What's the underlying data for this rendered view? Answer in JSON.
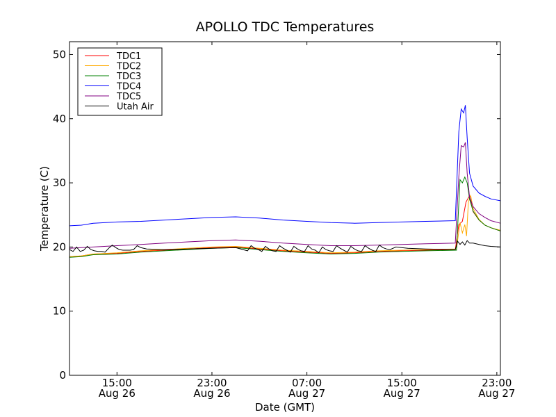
{
  "chart_data": {
    "type": "line",
    "title": "APOLLO TDC Temperatures",
    "xlabel": "Date (GMT)",
    "ylabel": "Temperature (C)",
    "xlim": [
      11.0,
      47.3
    ],
    "ylim": [
      0,
      52
    ],
    "x_unit": "hours since Aug 26 00:00 GMT",
    "grid": false,
    "legend_position": "top-left",
    "y_ticks": [
      {
        "value": 0,
        "label": "0"
      },
      {
        "value": 10,
        "label": "10"
      },
      {
        "value": 20,
        "label": "20"
      },
      {
        "value": 30,
        "label": "30"
      },
      {
        "value": 40,
        "label": "40"
      },
      {
        "value": 50,
        "label": "50"
      }
    ],
    "x_ticks": [
      {
        "value": 15,
        "time": "15:00",
        "date": "Aug 26"
      },
      {
        "value": 23,
        "time": "23:00",
        "date": "Aug 26"
      },
      {
        "value": 31,
        "time": "07:00",
        "date": "Aug 27"
      },
      {
        "value": 39,
        "time": "15:00",
        "date": "Aug 27"
      },
      {
        "value": 47,
        "time": "23:00",
        "date": "Aug 27"
      }
    ],
    "series": [
      {
        "name": "TDC1",
        "color": "#ff0000",
        "x": [
          11.0,
          12.0,
          13.0,
          15.0,
          17.0,
          19.0,
          21.0,
          23.0,
          25.0,
          27.0,
          29.0,
          31.0,
          33.0,
          35.0,
          37.0,
          39.0,
          41.0,
          43.5,
          43.8,
          44.1,
          44.4,
          44.7,
          45.0,
          45.5,
          46.0,
          46.5,
          47.3
        ],
        "y": [
          18.5,
          18.6,
          18.9,
          19.0,
          19.3,
          19.5,
          19.7,
          19.9,
          20.0,
          19.7,
          19.4,
          19.2,
          19.0,
          19.1,
          19.3,
          19.4,
          19.5,
          19.6,
          23.5,
          24.0,
          27.0,
          28.0,
          25.5,
          24.2,
          23.4,
          23.0,
          22.5
        ]
      },
      {
        "name": "TDC2",
        "color": "#ffaa00",
        "x": [
          11.0,
          12.0,
          13.0,
          15.0,
          17.0,
          19.0,
          21.0,
          23.0,
          25.0,
          27.0,
          29.0,
          31.0,
          33.0,
          35.0,
          37.0,
          39.0,
          41.0,
          43.6,
          43.9,
          44.1,
          44.3,
          44.45,
          44.6,
          44.8,
          45.0,
          45.5,
          46.0,
          46.5,
          47.3
        ],
        "y": [
          18.5,
          18.6,
          18.9,
          19.1,
          19.4,
          19.6,
          19.8,
          20.0,
          20.1,
          19.8,
          19.5,
          19.3,
          19.1,
          19.2,
          19.4,
          19.5,
          19.6,
          19.7,
          23.8,
          22.2,
          23.5,
          21.7,
          27.0,
          28.0,
          26.0,
          24.3,
          23.4,
          23.0,
          22.6
        ]
      },
      {
        "name": "TDC3",
        "color": "#008000",
        "x": [
          11.0,
          12.0,
          13.0,
          15.0,
          17.0,
          19.0,
          21.0,
          23.0,
          25.0,
          27.0,
          29.0,
          31.0,
          33.0,
          35.0,
          37.0,
          39.0,
          41.0,
          43.6,
          43.9,
          44.1,
          44.3,
          44.5,
          44.7,
          45.0,
          45.5,
          46.0,
          46.5,
          47.3
        ],
        "y": [
          18.4,
          18.5,
          18.8,
          18.9,
          19.2,
          19.4,
          19.6,
          19.8,
          19.9,
          19.6,
          19.3,
          19.1,
          18.9,
          19.0,
          19.2,
          19.3,
          19.4,
          19.5,
          30.5,
          30.0,
          30.9,
          30.0,
          27.5,
          25.6,
          24.2,
          23.4,
          23.0,
          22.5
        ]
      },
      {
        "name": "TDC4",
        "color": "#0000ff",
        "x": [
          11.0,
          12.0,
          13.0,
          15.0,
          17.0,
          19.0,
          21.0,
          23.0,
          25.0,
          27.0,
          29.0,
          31.0,
          33.0,
          35.0,
          37.0,
          39.0,
          41.0,
          43.5,
          43.8,
          44.0,
          44.2,
          44.35,
          44.5,
          44.7,
          45.0,
          45.5,
          46.0,
          46.5,
          47.3
        ],
        "y": [
          23.3,
          23.4,
          23.7,
          23.9,
          24.0,
          24.2,
          24.4,
          24.6,
          24.7,
          24.5,
          24.2,
          24.0,
          23.8,
          23.7,
          23.8,
          23.9,
          24.0,
          24.1,
          38.0,
          41.5,
          40.9,
          42.1,
          37.0,
          31.5,
          29.5,
          28.4,
          27.9,
          27.5,
          27.2
        ]
      },
      {
        "name": "TDC5",
        "color": "#800080",
        "x": [
          11.0,
          12.0,
          13.0,
          15.0,
          17.0,
          19.0,
          21.0,
          23.0,
          25.0,
          27.0,
          29.0,
          31.0,
          33.0,
          35.0,
          37.0,
          39.0,
          41.0,
          43.5,
          43.8,
          44.0,
          44.2,
          44.35,
          44.5,
          44.7,
          45.0,
          45.5,
          46.0,
          46.5,
          47.3
        ],
        "y": [
          19.8,
          19.9,
          20.0,
          20.2,
          20.4,
          20.6,
          20.8,
          21.0,
          21.1,
          20.9,
          20.6,
          20.4,
          20.2,
          20.2,
          20.3,
          20.4,
          20.5,
          20.6,
          31.0,
          35.8,
          35.6,
          36.3,
          31.5,
          27.8,
          26.3,
          25.2,
          24.6,
          24.1,
          23.7
        ]
      },
      {
        "name": "Utah Air",
        "color": "#000000",
        "x": [
          11.0,
          11.3,
          11.6,
          11.9,
          12.2,
          12.5,
          12.8,
          13.1,
          13.4,
          13.7,
          14.0,
          14.3,
          14.6,
          14.9,
          15.2,
          15.5,
          15.8,
          16.1,
          16.4,
          16.7,
          17.0,
          17.5,
          19.0,
          21.0,
          23.0,
          25.0,
          26.0,
          26.3,
          26.6,
          26.9,
          27.2,
          27.5,
          27.8,
          28.1,
          28.4,
          28.7,
          29.0,
          29.3,
          29.6,
          29.9,
          30.2,
          30.5,
          30.8,
          31.1,
          31.4,
          31.7,
          32.0,
          32.3,
          32.6,
          32.9,
          33.2,
          33.5,
          33.8,
          34.1,
          34.4,
          34.7,
          35.0,
          35.3,
          35.6,
          35.9,
          36.2,
          36.5,
          36.8,
          37.1,
          37.4,
          37.7,
          38.0,
          38.5,
          39.5,
          41.0,
          43.5,
          43.7,
          43.9,
          44.1,
          44.3,
          44.5,
          44.7,
          45.0,
          45.5,
          46.0,
          46.5,
          47.3
        ],
        "y": [
          19.6,
          19.3,
          20.0,
          19.3,
          19.5,
          20.1,
          19.6,
          19.4,
          19.3,
          19.3,
          19.2,
          19.8,
          20.3,
          19.9,
          19.6,
          19.5,
          19.5,
          19.5,
          19.6,
          20.2,
          19.9,
          19.7,
          19.6,
          19.7,
          19.8,
          19.9,
          19.4,
          20.2,
          19.8,
          19.6,
          19.3,
          20.1,
          19.7,
          19.4,
          19.3,
          20.2,
          19.8,
          19.5,
          19.2,
          20.1,
          19.7,
          19.4,
          19.3,
          20.2,
          19.7,
          19.5,
          19.1,
          20.0,
          19.6,
          19.4,
          19.3,
          20.2,
          19.8,
          19.5,
          19.2,
          20.1,
          19.7,
          19.4,
          19.3,
          20.2,
          19.8,
          19.5,
          19.3,
          20.3,
          19.9,
          19.7,
          19.6,
          20.0,
          19.8,
          19.7,
          19.6,
          20.9,
          20.4,
          20.8,
          20.3,
          21.0,
          20.6,
          20.6,
          20.4,
          20.2,
          20.1,
          20.0
        ]
      }
    ]
  }
}
